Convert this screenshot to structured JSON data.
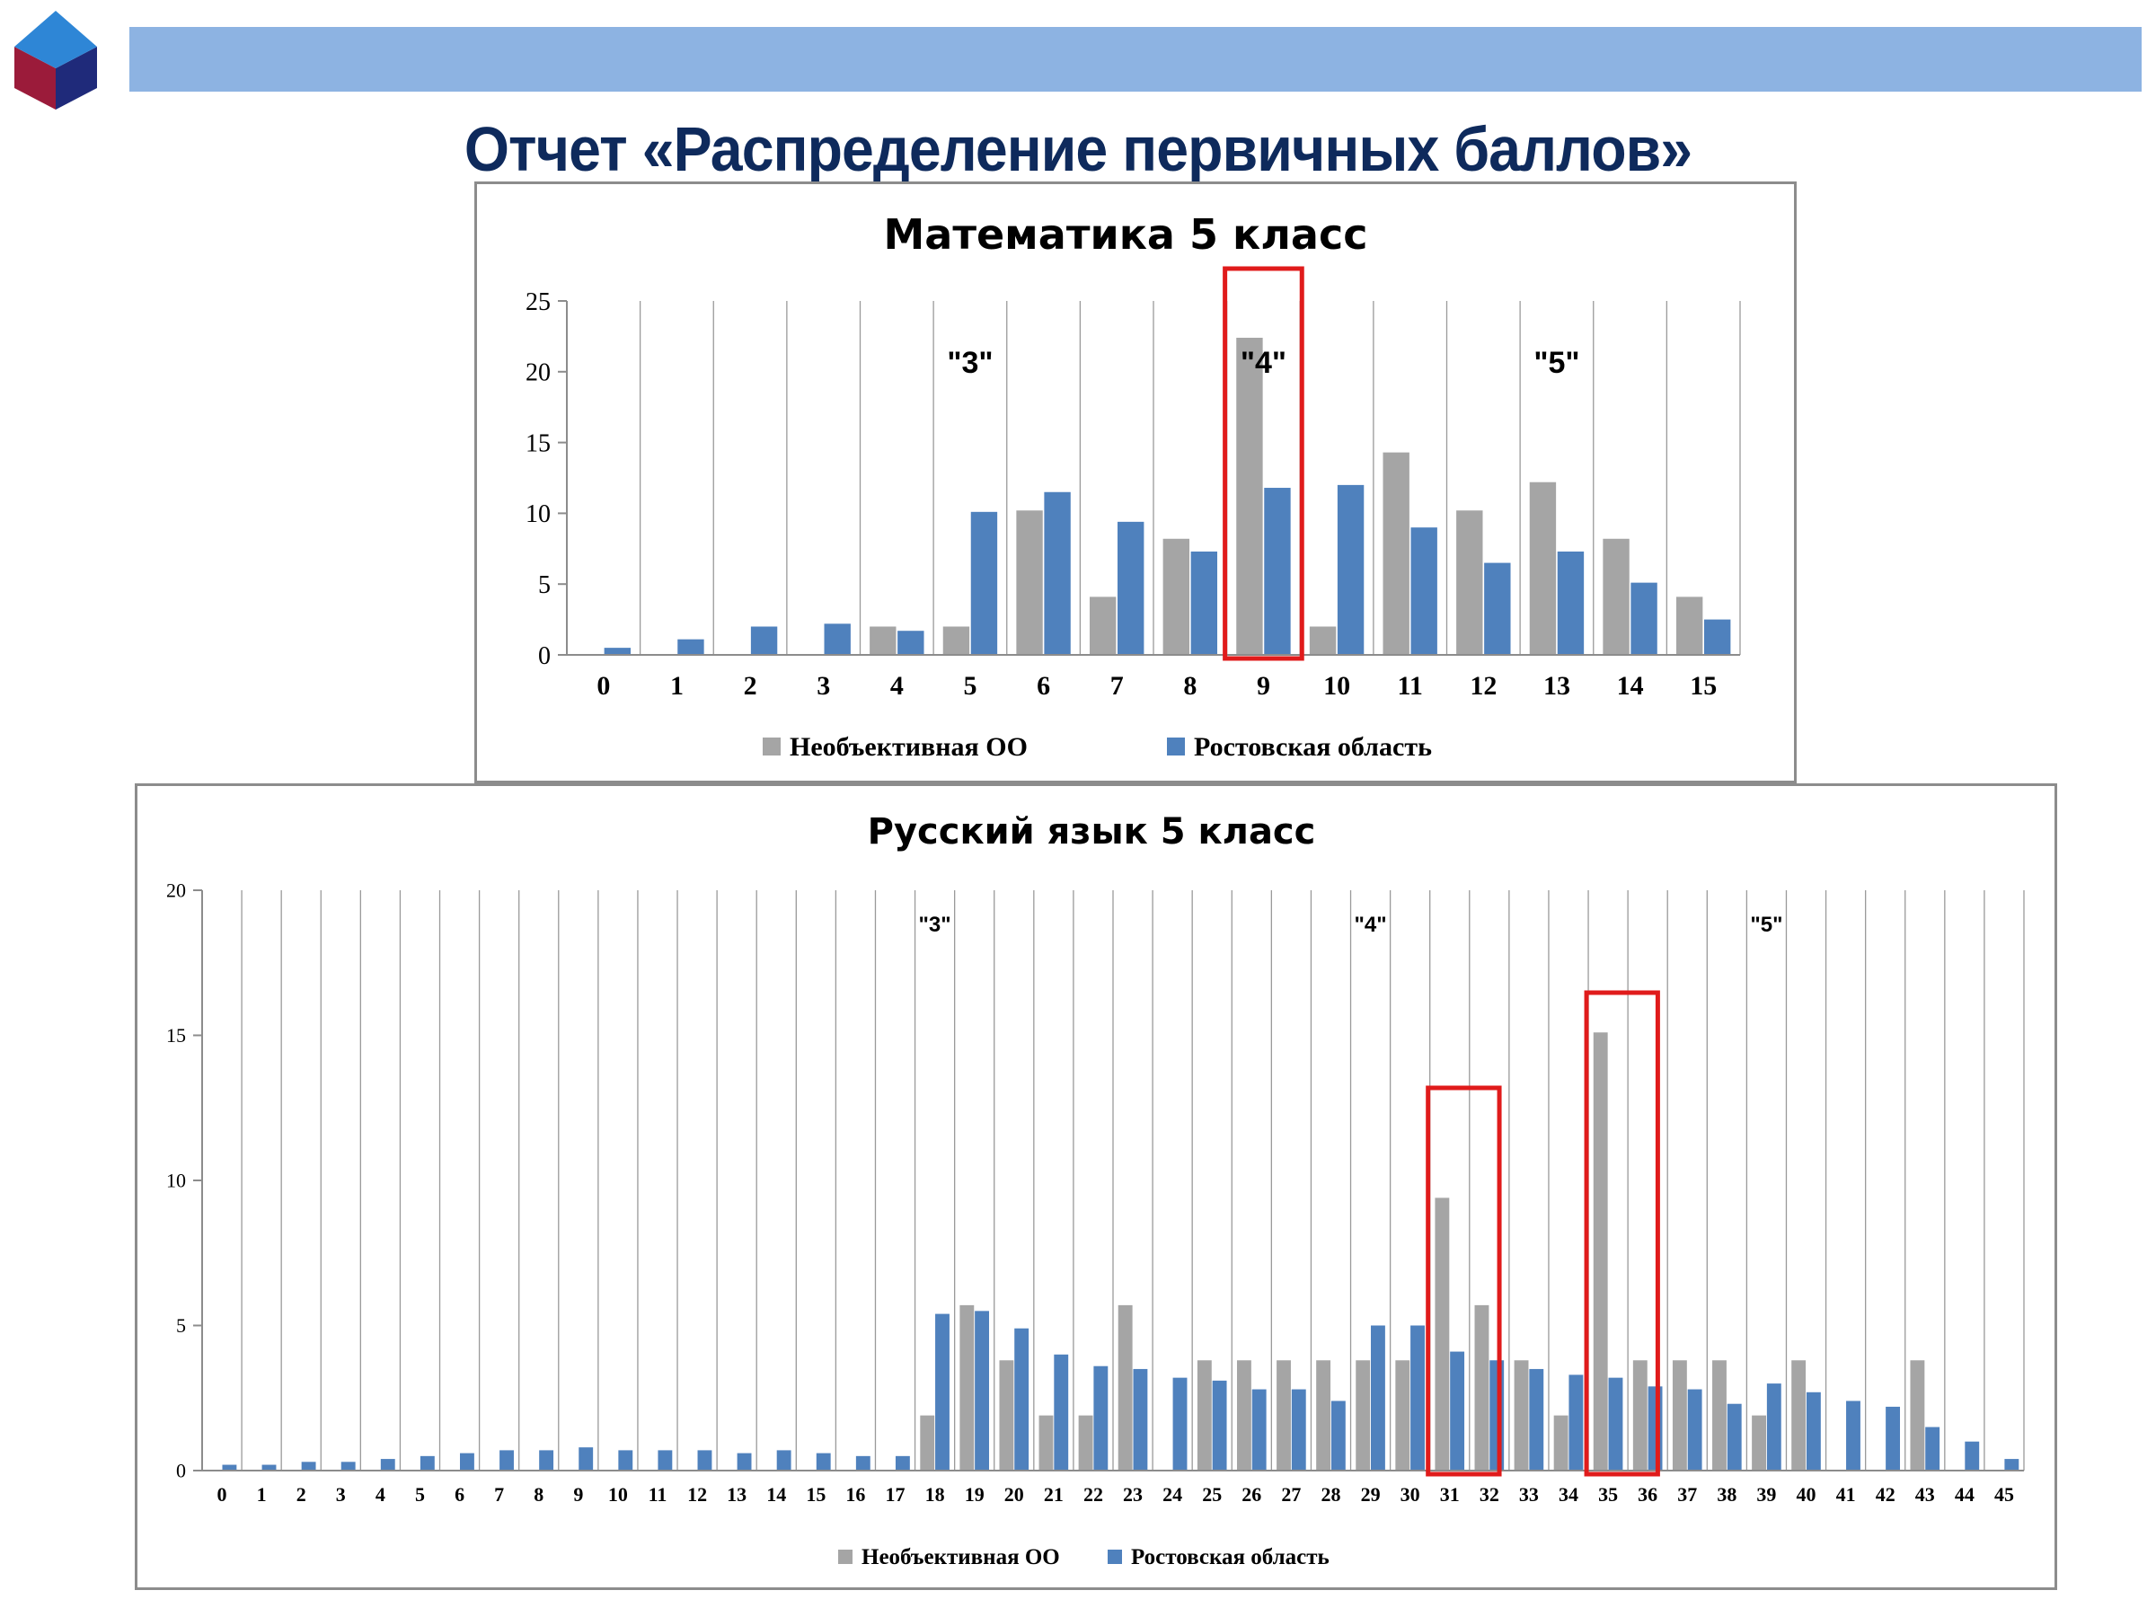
{
  "slide": {
    "title": "Отчет «Распределение первичных баллов»"
  },
  "colors": {
    "band": "#8DB3E2",
    "title": "#0E2A5C",
    "gray_series": "#A5A5A5",
    "blue_series": "#4F81BD",
    "highlight": "#E01B1B",
    "logo_red": "#9B1B3A",
    "logo_navy": "#1F2A7A",
    "logo_blue": "#2E86D6"
  },
  "chart_data": [
    {
      "type": "bar",
      "title": "Математика 5 класс",
      "categories": [
        "0",
        "1",
        "2",
        "3",
        "4",
        "5",
        "6",
        "7",
        "8",
        "9",
        "10",
        "11",
        "12",
        "13",
        "14",
        "15"
      ],
      "series": [
        {
          "name": "Необъективная ОО",
          "color": "#A5A5A5",
          "values": [
            0,
            0,
            0,
            0,
            2,
            2,
            10.2,
            4.1,
            8.2,
            22.4,
            2,
            14.3,
            10.2,
            12.2,
            8.2,
            4.1
          ]
        },
        {
          "name": "Ростовская область",
          "color": "#4F81BD",
          "values": [
            0.5,
            1.1,
            2,
            2.2,
            1.7,
            10.1,
            11.5,
            9.4,
            7.3,
            11.8,
            12,
            9,
            6.5,
            7.3,
            5.1,
            2.5
          ]
        }
      ],
      "ylim": [
        0,
        25
      ],
      "yticks": [
        "0",
        "5",
        "10",
        "15",
        "20",
        "25"
      ],
      "grid": "vertical",
      "legend_position": "bottom",
      "annotations": [
        {
          "text": "\"3\"",
          "at_category": "5"
        },
        {
          "text": "\"4\"",
          "at_category": "9"
        },
        {
          "text": "\"5\"",
          "at_category": "13"
        }
      ],
      "highlight_categories": [
        [
          "9",
          "9"
        ]
      ]
    },
    {
      "type": "bar",
      "title": "Русский язык 5 класс",
      "categories": [
        "0",
        "1",
        "2",
        "3",
        "4",
        "5",
        "6",
        "7",
        "8",
        "9",
        "10",
        "11",
        "12",
        "13",
        "14",
        "15",
        "16",
        "17",
        "18",
        "19",
        "20",
        "21",
        "22",
        "23",
        "24",
        "25",
        "26",
        "27",
        "28",
        "29",
        "30",
        "31",
        "32",
        "33",
        "34",
        "35",
        "36",
        "37",
        "38",
        "39",
        "40",
        "41",
        "42",
        "43",
        "44",
        "45"
      ],
      "series": [
        {
          "name": "Необъективная ОО",
          "color": "#A5A5A5",
          "values": [
            0,
            0,
            0,
            0,
            0,
            0,
            0,
            0,
            0,
            0,
            0,
            0,
            0,
            0,
            0,
            0,
            0,
            0,
            1.9,
            5.7,
            3.8,
            1.9,
            1.9,
            5.7,
            0,
            3.8,
            3.8,
            3.8,
            3.8,
            3.8,
            3.8,
            9.4,
            5.7,
            3.8,
            1.9,
            15.1,
            3.8,
            3.8,
            3.8,
            1.9,
            3.8,
            0,
            0,
            3.8,
            0,
            0
          ]
        },
        {
          "name": "Ростовская область",
          "color": "#4F81BD",
          "values": [
            0.2,
            0.2,
            0.3,
            0.3,
            0.4,
            0.5,
            0.6,
            0.7,
            0.7,
            0.8,
            0.7,
            0.7,
            0.7,
            0.6,
            0.7,
            0.6,
            0.5,
            0.5,
            5.4,
            5.5,
            4.9,
            4.0,
            3.6,
            3.5,
            3.2,
            3.1,
            2.8,
            2.8,
            2.4,
            5.0,
            5.0,
            4.1,
            3.8,
            3.5,
            3.3,
            3.2,
            2.9,
            2.8,
            2.3,
            3.0,
            2.7,
            2.4,
            2.2,
            1.5,
            1.0,
            0.4
          ]
        }
      ],
      "ylim": [
        0,
        20
      ],
      "yticks": [
        "0",
        "5",
        "10",
        "15",
        "20"
      ],
      "grid": "vertical",
      "legend_position": "bottom",
      "annotations": [
        {
          "text": "\"3\"",
          "at_category": "18"
        },
        {
          "text": "\"4\"",
          "at_category": "29"
        },
        {
          "text": "\"5\"",
          "at_category": "39"
        }
      ],
      "highlight_categories": [
        [
          "31",
          "32"
        ],
        [
          "35",
          "36"
        ]
      ]
    }
  ]
}
